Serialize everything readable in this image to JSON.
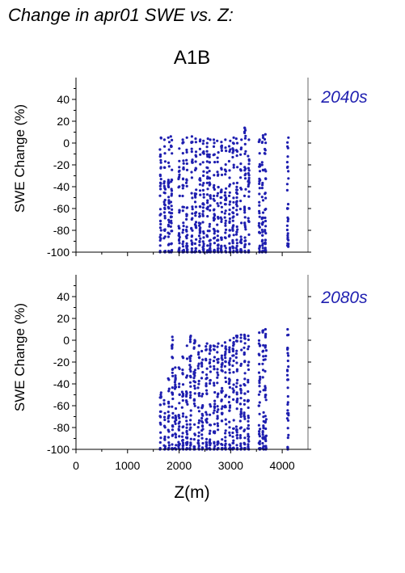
{
  "title": "Change in apr01 SWE vs. Z:",
  "scenario": "A1B",
  "colors": {
    "points": "#1f1fb0",
    "axes": "#000000"
  },
  "chart_data": [
    {
      "type": "scatter",
      "panel_label": "2040s",
      "ylabel": "SWE Change (%)",
      "xlabel": "",
      "xlim": [
        0,
        4500
      ],
      "ylim": [
        -100,
        60
      ],
      "xticks": [
        0,
        1000,
        2000,
        3000,
        4000
      ],
      "yticks": [
        -100,
        -80,
        -60,
        -40,
        -20,
        0,
        20,
        40
      ],
      "grid": false,
      "columns": [
        {
          "x": 1640,
          "ymin": -100,
          "ymax": 5
        },
        {
          "x": 1720,
          "ymin": -100,
          "ymax": 3
        },
        {
          "x": 1800,
          "ymin": -100,
          "ymax": 5
        },
        {
          "x": 1850,
          "ymin": -100,
          "ymax": 6
        },
        {
          "x": 2000,
          "ymin": -100,
          "ymax": -5
        },
        {
          "x": 2080,
          "ymin": -100,
          "ymax": 3
        },
        {
          "x": 2150,
          "ymin": -100,
          "ymax": 5
        },
        {
          "x": 2250,
          "ymin": -100,
          "ymax": 6
        },
        {
          "x": 2320,
          "ymin": -100,
          "ymax": 4
        },
        {
          "x": 2400,
          "ymin": -100,
          "ymax": 3
        },
        {
          "x": 2470,
          "ymin": -100,
          "ymax": 2
        },
        {
          "x": 2550,
          "ymin": -100,
          "ymax": 4
        },
        {
          "x": 2600,
          "ymin": -100,
          "ymax": 3
        },
        {
          "x": 2680,
          "ymin": -100,
          "ymax": 3
        },
        {
          "x": 2750,
          "ymin": -100,
          "ymax": 2
        },
        {
          "x": 2820,
          "ymin": -100,
          "ymax": 1
        },
        {
          "x": 2900,
          "ymin": -100,
          "ymax": 3
        },
        {
          "x": 2980,
          "ymin": -100,
          "ymax": 2
        },
        {
          "x": 3050,
          "ymin": -100,
          "ymax": 5
        },
        {
          "x": 3120,
          "ymin": -100,
          "ymax": 4
        },
        {
          "x": 3200,
          "ymin": -100,
          "ymax": 3
        },
        {
          "x": 3280,
          "ymin": -100,
          "ymax": 14
        },
        {
          "x": 3350,
          "ymin": -100,
          "ymax": 3
        },
        {
          "x": 3560,
          "ymin": -100,
          "ymax": 3
        },
        {
          "x": 3620,
          "ymin": -100,
          "ymax": 7
        },
        {
          "x": 3670,
          "ymin": -100,
          "ymax": 8
        },
        {
          "x": 4110,
          "ymin": -95,
          "ymax": 5
        }
      ]
    },
    {
      "type": "scatter",
      "panel_label": "2080s",
      "ylabel": "SWE Change (%)",
      "xlabel": "Z(m)",
      "xlim": [
        0,
        4500
      ],
      "ylim": [
        -100,
        60
      ],
      "xticks": [
        0,
        1000,
        2000,
        3000,
        4000
      ],
      "yticks": [
        -100,
        -80,
        -60,
        -40,
        -20,
        0,
        20,
        40
      ],
      "grid": false,
      "columns": [
        {
          "x": 1640,
          "ymin": -100,
          "ymax": -48
        },
        {
          "x": 1720,
          "ymin": -100,
          "ymax": -55
        },
        {
          "x": 1800,
          "ymin": -100,
          "ymax": -35
        },
        {
          "x": 1870,
          "ymin": -100,
          "ymax": 3
        },
        {
          "x": 1930,
          "ymin": -100,
          "ymax": -25
        },
        {
          "x": 2000,
          "ymin": -100,
          "ymax": -25
        },
        {
          "x": 2070,
          "ymin": -100,
          "ymax": -15
        },
        {
          "x": 2150,
          "ymin": -100,
          "ymax": -5
        },
        {
          "x": 2220,
          "ymin": -100,
          "ymax": 4
        },
        {
          "x": 2300,
          "ymin": -100,
          "ymax": 0
        },
        {
          "x": 2380,
          "ymin": -100,
          "ymax": -5
        },
        {
          "x": 2450,
          "ymin": -100,
          "ymax": -10
        },
        {
          "x": 2530,
          "ymin": -100,
          "ymax": -3
        },
        {
          "x": 2600,
          "ymin": -100,
          "ymax": -5
        },
        {
          "x": 2680,
          "ymin": -100,
          "ymax": -5
        },
        {
          "x": 2750,
          "ymin": -100,
          "ymax": -3
        },
        {
          "x": 2830,
          "ymin": -100,
          "ymax": -5
        },
        {
          "x": 2900,
          "ymin": -100,
          "ymax": -2
        },
        {
          "x": 2980,
          "ymin": -100,
          "ymax": 0
        },
        {
          "x": 3050,
          "ymin": -100,
          "ymax": 2
        },
        {
          "x": 3120,
          "ymin": -100,
          "ymax": 4
        },
        {
          "x": 3200,
          "ymin": -100,
          "ymax": 5
        },
        {
          "x": 3270,
          "ymin": -100,
          "ymax": 5
        },
        {
          "x": 3340,
          "ymin": -100,
          "ymax": 4
        },
        {
          "x": 3560,
          "ymin": -100,
          "ymax": 7
        },
        {
          "x": 3630,
          "ymin": -100,
          "ymax": 9
        },
        {
          "x": 3680,
          "ymin": -100,
          "ymax": 10
        },
        {
          "x": 4110,
          "ymin": -100,
          "ymax": 10
        }
      ]
    }
  ]
}
